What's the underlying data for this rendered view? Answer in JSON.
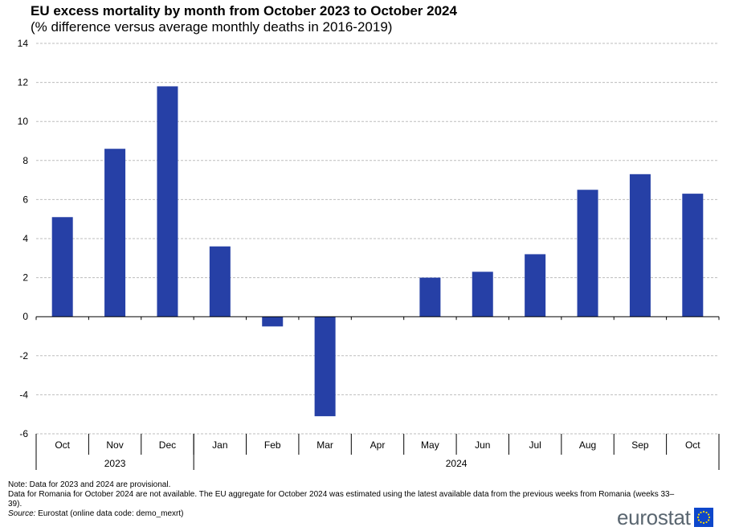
{
  "title": "EU excess mortality by month from October 2023 to October 2024",
  "subtitle": "(% difference versus average monthly deaths in 2016-2019)",
  "colors": {
    "bar": "#2640a6",
    "grid": "#bdbdbd",
    "axis": "#000000",
    "logo_text": "#5a6670",
    "flag": "#0e47cb",
    "stars": "#ffdd00"
  },
  "chart_data": {
    "type": "bar",
    "categories": [
      "Oct",
      "Nov",
      "Dec",
      "Jan",
      "Feb",
      "Mar",
      "Apr",
      "May",
      "Jun",
      "Jul",
      "Aug",
      "Sep",
      "Oct"
    ],
    "year_groups": [
      {
        "label": "2023",
        "count": 3
      },
      {
        "label": "2024",
        "count": 10
      }
    ],
    "values": [
      5.1,
      8.6,
      11.8,
      3.6,
      -0.5,
      -5.1,
      0,
      2.0,
      2.3,
      3.2,
      6.5,
      7.3,
      6.3
    ],
    "yticks": [
      "14",
      "12",
      "10",
      "8",
      "6",
      "4",
      "2",
      "0",
      "-2",
      "-4",
      "-6"
    ],
    "ylim": [
      -6,
      14
    ],
    "grid": true,
    "grid_style": "dashed horizontal"
  },
  "notes": {
    "line1": "Note: Data  for 2023 and 2024 are provisional.",
    "line2": "Data for Romania  for October 2024 are not available. The EU  aggregate for October 2024 was estimated using the latest available data from the previous weeks from Romania (weeks 33–39).",
    "source_label": "Source:",
    "source_text": " Eurostat (online data code: demo_mexrt)"
  },
  "logo": {
    "text": "eurostat",
    "icon": "eu-flag-icon"
  }
}
